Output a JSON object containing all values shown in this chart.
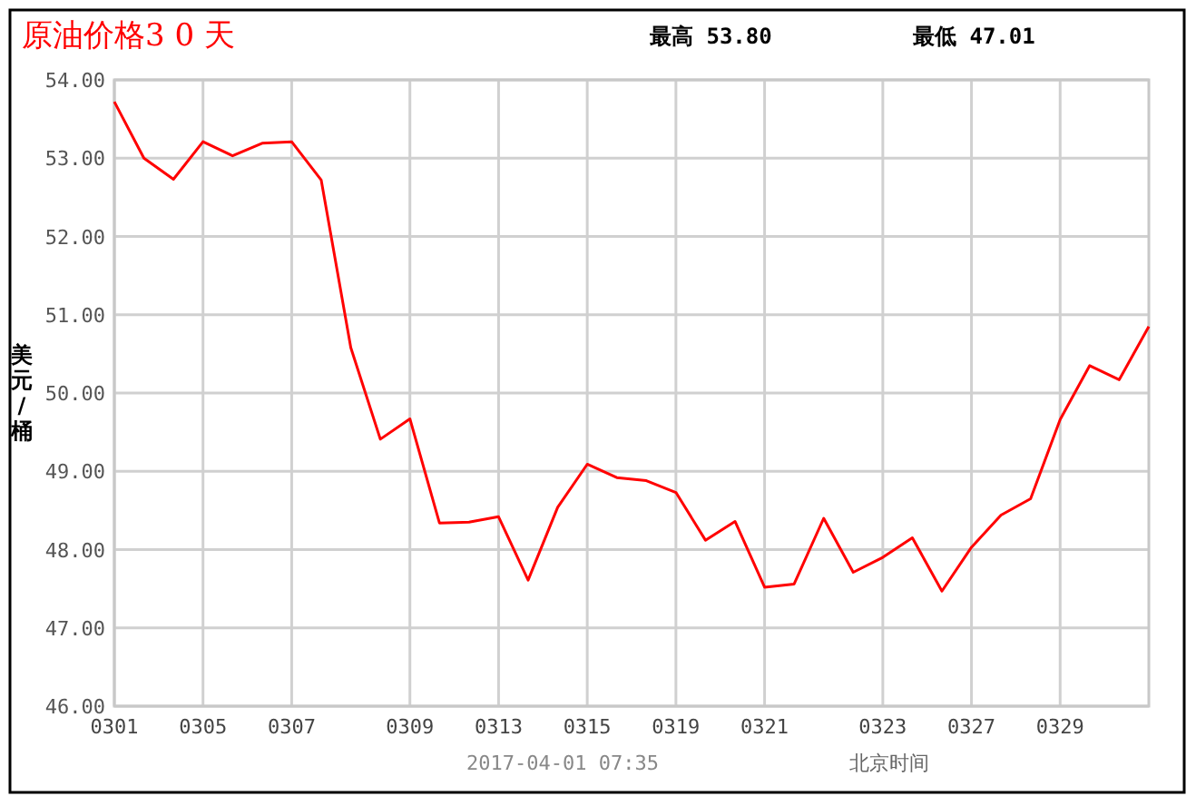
{
  "chart_data": {
    "type": "line",
    "title": "原油价格3 0 天",
    "annotations": [
      "最高 53.80",
      "最低 47.01",
      "2017-04-01 07:35",
      "北京时间"
    ],
    "ylabel": "美元/桶",
    "categories": [
      "0301",
      null,
      null,
      "0305",
      null,
      null,
      "0307",
      null,
      null,
      null,
      "0309",
      null,
      null,
      "0313",
      null,
      null,
      "0315",
      null,
      null,
      "0319",
      null,
      null,
      "0321",
      null,
      null,
      null,
      "0323",
      null,
      null,
      "0327",
      null,
      null,
      "0329",
      null,
      null,
      null
    ],
    "series": [
      {
        "color": "#ff0000",
        "values": [
          53.72,
          53.0,
          52.73,
          53.21,
          53.03,
          53.19,
          53.21,
          52.72,
          50.58,
          49.41,
          49.67,
          48.34,
          48.35,
          48.42,
          47.61,
          48.54,
          49.09,
          48.92,
          48.88,
          48.73,
          48.12,
          48.36,
          47.52,
          47.56,
          48.4,
          47.71,
          47.9,
          48.15,
          47.47,
          48.03,
          48.44,
          48.65,
          49.66,
          50.35,
          50.17,
          50.85
        ]
      }
    ],
    "ylim": [
      46,
      54
    ],
    "yticks": [
      {
        "value": 46,
        "label": "46.00"
      },
      {
        "value": 47,
        "label": "47.00"
      },
      {
        "value": 48,
        "label": "48.00"
      },
      {
        "value": 49,
        "label": "49.00"
      },
      {
        "value": 50,
        "label": "50.00"
      },
      {
        "value": 51,
        "label": "51.00"
      },
      {
        "value": 52,
        "label": "52.00"
      },
      {
        "value": 53,
        "label": "53.00"
      },
      {
        "value": 54,
        "label": "54.00"
      }
    ],
    "grid": true
  }
}
